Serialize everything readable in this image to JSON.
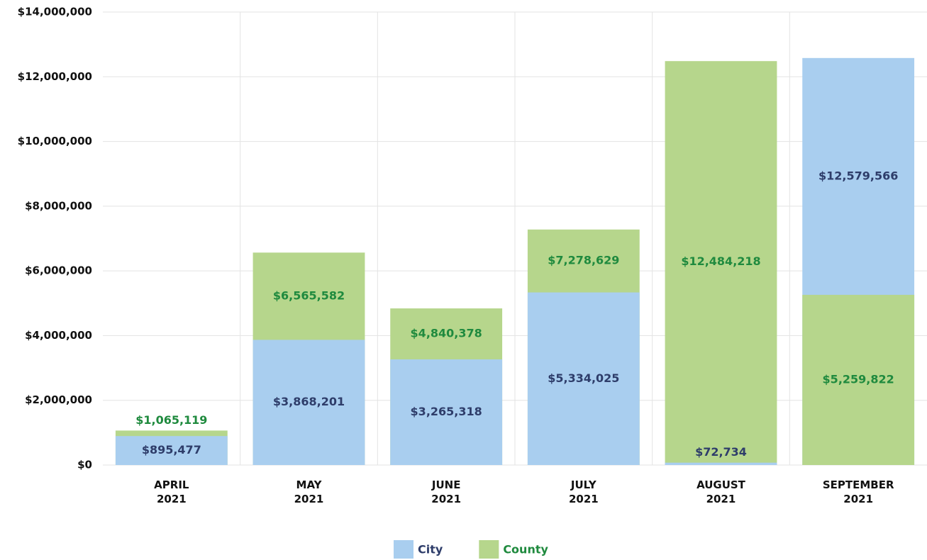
{
  "chart_data": {
    "type": "bar",
    "overlap": true,
    "categories": [
      "APRIL 2021",
      "MAY 2021",
      "JUNE 2021",
      "JULY 2021",
      "AUGUST 2021",
      "SEPTEMBER 2021"
    ],
    "series": [
      {
        "name": "City",
        "color": "#a9ceef",
        "label_color": "#2e3d6a",
        "values": [
          895477,
          3868201,
          3265318,
          5334025,
          72734,
          12579566
        ],
        "value_labels": [
          "$895,477",
          "$3,868,201",
          "$3,265,318",
          "$5,334,025",
          "$72,734",
          "$12,579,566"
        ]
      },
      {
        "name": "County",
        "color": "#b6d68c",
        "label_color": "#1f8a3e",
        "values": [
          1065119,
          6565582,
          4840378,
          7278629,
          12484218,
          5259822
        ],
        "value_labels": [
          "$1,065,119",
          "$6,565,582",
          "$4,840,378",
          "$7,278,629",
          "$12,484,218",
          "$5,259,822"
        ]
      }
    ],
    "ylim": [
      0,
      14000000
    ],
    "yticks": [
      {
        "value": 0,
        "label": "$0"
      },
      {
        "value": 2000000,
        "label": "$2,000,000"
      },
      {
        "value": 4000000,
        "label": "$4,000,000"
      },
      {
        "value": 6000000,
        "label": "$6,000,000"
      },
      {
        "value": 8000000,
        "label": "$8,000,000"
      },
      {
        "value": 10000000,
        "label": "$10,000,000"
      },
      {
        "value": 12000000,
        "label": "$12,000,000"
      },
      {
        "value": 14000000,
        "label": "$14,000,000"
      }
    ],
    "grid": true,
    "legend": "bottom"
  }
}
